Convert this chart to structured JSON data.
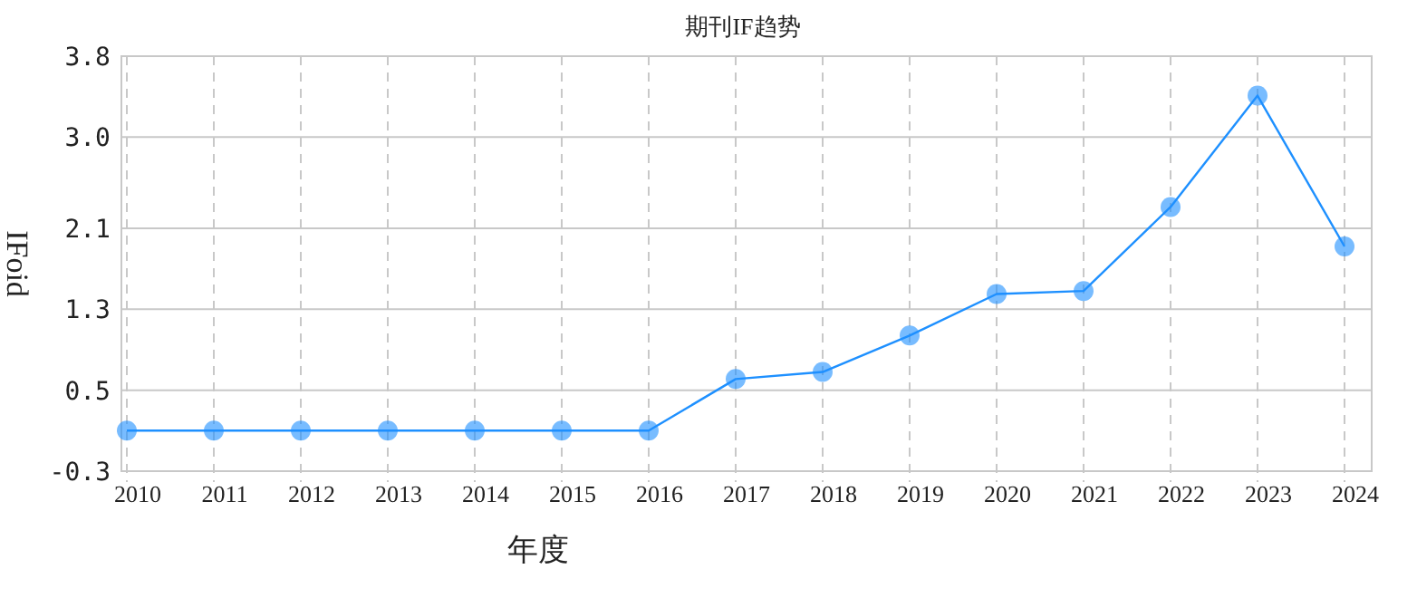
{
  "chart_data": {
    "type": "line",
    "title": "期刊IF趋势",
    "xlabel": "年度",
    "ylabel": "IFoid",
    "categories": [
      "2010",
      "2011",
      "2012",
      "2013",
      "2014",
      "2015",
      "2016",
      "2017",
      "2018",
      "2019",
      "2020",
      "2021",
      "2022",
      "2023",
      "2024"
    ],
    "series": [
      {
        "color": "#1e90ff",
        "values": [
          0.1,
          0.1,
          0.1,
          0.1,
          0.1,
          0.1,
          0.1,
          0.61,
          0.68,
          1.04,
          1.45,
          1.48,
          2.31,
          3.41,
          1.92
        ]
      }
    ],
    "ylim": [
      -0.3,
      3.8
    ],
    "yticks": [
      -0.3,
      0.5,
      1.3,
      2.1,
      {
        "value": 3.0,
        "label": "3.0"
      },
      3.8
    ],
    "grid": true,
    "marker": "circle",
    "line_style": "solid"
  }
}
